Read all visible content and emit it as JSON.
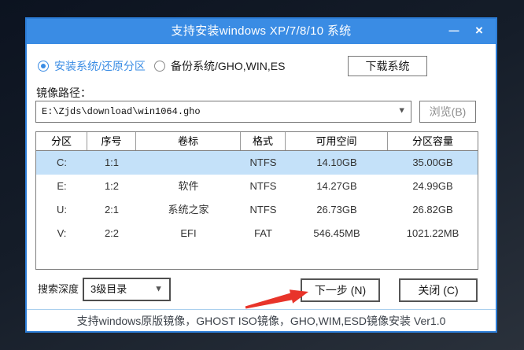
{
  "window": {
    "title": "支持安装windows XP/7/8/10 系统"
  },
  "icons": {
    "minimize": "—",
    "close": "×",
    "dropdown": "▼"
  },
  "mode": {
    "install": "安装系统/还原分区",
    "backup": "备份系统/GHO,WIN,ES",
    "download": "下载系统"
  },
  "image_path": {
    "label": "镜像路径：",
    "value": "E:\\Zjds\\download\\win1064.gho",
    "browse": "浏览(B)"
  },
  "partition_table": {
    "headers": [
      "分区",
      "序号",
      "卷标",
      "格式",
      "可用空间",
      "分区容量"
    ],
    "rows": [
      {
        "drive": "C:",
        "index": "1:1",
        "label": "",
        "format": "NTFS",
        "free": "14.10GB",
        "capacity": "35.00GB",
        "selected": true
      },
      {
        "drive": "E:",
        "index": "1:2",
        "label": "软件",
        "format": "NTFS",
        "free": "14.27GB",
        "capacity": "24.99GB",
        "selected": false
      },
      {
        "drive": "U:",
        "index": "2:1",
        "label": "系统之家",
        "format": "NTFS",
        "free": "26.73GB",
        "capacity": "26.82GB",
        "selected": false
      },
      {
        "drive": "V:",
        "index": "2:2",
        "label": "EFI",
        "format": "FAT",
        "free": "546.45MB",
        "capacity": "1021.22MB",
        "selected": false
      }
    ]
  },
  "controls": {
    "search_depth_label": "搜索深度",
    "search_depth_value": "3级目录",
    "next": "下一步 (N)",
    "close": "关闭 (C)"
  },
  "status_bar": "支持windows原版镜像，GHOST ISO镜像，GHO,WIM,ESD镜像安装 Ver1.0",
  "colors": {
    "titlebar_blue": "#3a8ce4",
    "selected_row": "#c4e1f9",
    "arrow_red": "#e8342a",
    "desktop_dark": "#141b26"
  }
}
